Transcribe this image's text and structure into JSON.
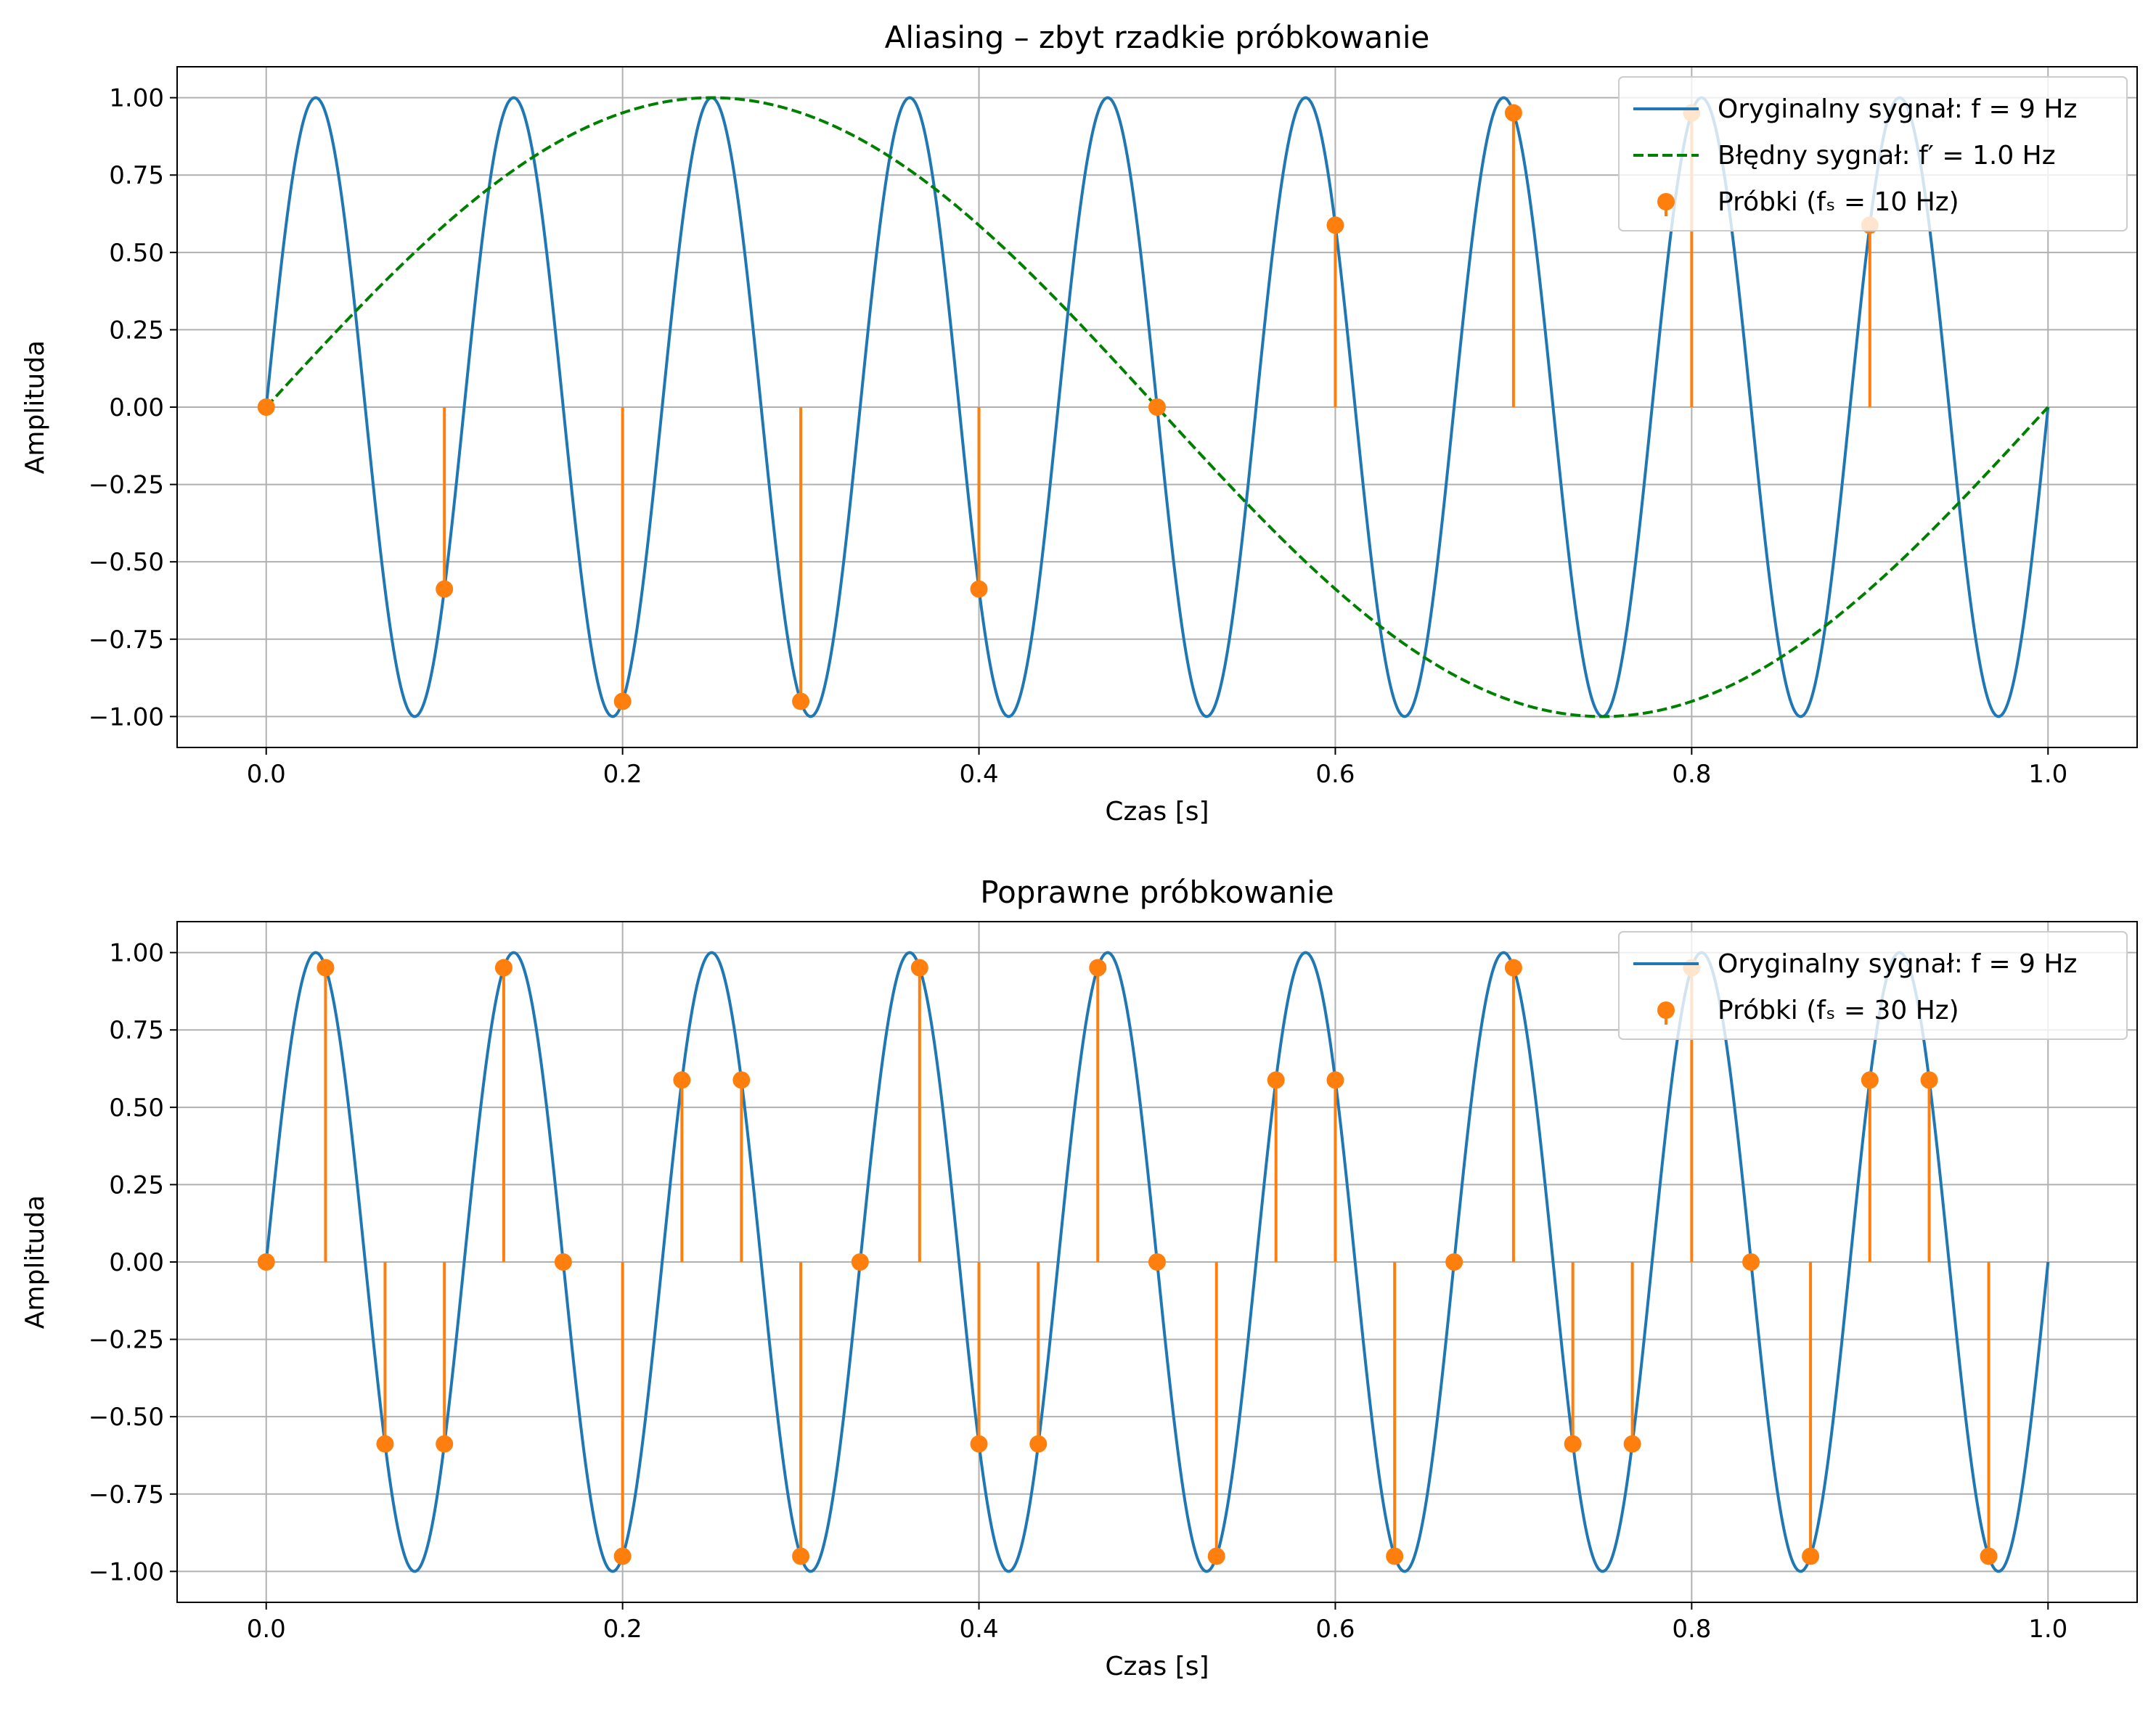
{
  "chart_data": [
    {
      "type": "line",
      "title": "Aliasing – zbyt rzadkie próbkowanie",
      "xlabel": "Czas [s]",
      "ylabel": "Amplituda",
      "xlim": [
        -0.05,
        1.05
      ],
      "ylim": [
        -1.1,
        1.1
      ],
      "xticks": [
        0.0,
        0.2,
        0.4,
        0.6,
        0.8,
        1.0
      ],
      "xtick_labels": [
        "0.0",
        "0.2",
        "0.4",
        "0.6",
        "0.8",
        "1.0"
      ],
      "yticks": [
        -1.0,
        -0.75,
        -0.5,
        -0.25,
        0.0,
        0.25,
        0.5,
        0.75,
        1.0
      ],
      "ytick_labels": [
        "−1.00",
        "−0.75",
        "−0.50",
        "−0.25",
        "0.00",
        "0.25",
        "0.50",
        "0.75",
        "1.00"
      ],
      "grid": true,
      "legend_position": "top-right",
      "series": [
        {
          "name": "Oryginalny sygnał: f = 9 Hz",
          "kind": "line",
          "frequency_hz": 9,
          "x_range": [
            0,
            1
          ],
          "color": "#1f77b4",
          "style": "solid"
        },
        {
          "name": "Błędny sygnał: f′ = 1.0 Hz",
          "kind": "line",
          "frequency_hz": 1.0,
          "x_range": [
            0,
            1
          ],
          "color": "#008000",
          "style": "dashed"
        },
        {
          "name": "Próbki (fₛ = 10 Hz)",
          "kind": "stem",
          "color": "#ff7f0e",
          "x": [
            0.0,
            0.1,
            0.2,
            0.3,
            0.4,
            0.5,
            0.6,
            0.7,
            0.8,
            0.9
          ],
          "y": [
            0.0,
            -0.588,
            -0.951,
            -0.951,
            -0.588,
            0.0,
            0.588,
            0.951,
            0.951,
            0.588
          ]
        }
      ]
    },
    {
      "type": "line",
      "title": "Poprawne próbkowanie",
      "xlabel": "Czas [s]",
      "ylabel": "Amplituda",
      "xlim": [
        -0.05,
        1.05
      ],
      "ylim": [
        -1.1,
        1.1
      ],
      "xticks": [
        0.0,
        0.2,
        0.4,
        0.6,
        0.8,
        1.0
      ],
      "xtick_labels": [
        "0.0",
        "0.2",
        "0.4",
        "0.6",
        "0.8",
        "1.0"
      ],
      "yticks": [
        -1.0,
        -0.75,
        -0.5,
        -0.25,
        0.0,
        0.25,
        0.5,
        0.75,
        1.0
      ],
      "ytick_labels": [
        "−1.00",
        "−0.75",
        "−0.50",
        "−0.25",
        "0.00",
        "0.25",
        "0.50",
        "0.75",
        "1.00"
      ],
      "grid": true,
      "legend_position": "top-right",
      "series": [
        {
          "name": "Oryginalny sygnał: f = 9 Hz",
          "kind": "line",
          "frequency_hz": 9,
          "x_range": [
            0,
            1
          ],
          "color": "#1f77b4",
          "style": "solid"
        },
        {
          "name": "Próbki (fₛ = 30 Hz)",
          "kind": "stem",
          "color": "#ff7f0e",
          "x": [
            0.0,
            0.0333,
            0.0667,
            0.1,
            0.1333,
            0.1667,
            0.2,
            0.2333,
            0.2667,
            0.3,
            0.3333,
            0.3667,
            0.4,
            0.4333,
            0.4667,
            0.5,
            0.5333,
            0.5667,
            0.6,
            0.6333,
            0.6667,
            0.7,
            0.7333,
            0.7667,
            0.8,
            0.8333,
            0.8667,
            0.9,
            0.9333,
            0.9667
          ],
          "y": [
            0.0,
            0.951,
            -0.588,
            -0.588,
            0.951,
            0.0,
            -0.951,
            0.588,
            0.588,
            -0.951,
            0.0,
            0.951,
            -0.588,
            -0.588,
            0.951,
            0.0,
            -0.951,
            0.588,
            0.588,
            -0.951,
            0.0,
            0.951,
            -0.588,
            -0.588,
            0.951,
            0.0,
            -0.951,
            0.588,
            0.588,
            -0.951
          ]
        }
      ]
    }
  ]
}
